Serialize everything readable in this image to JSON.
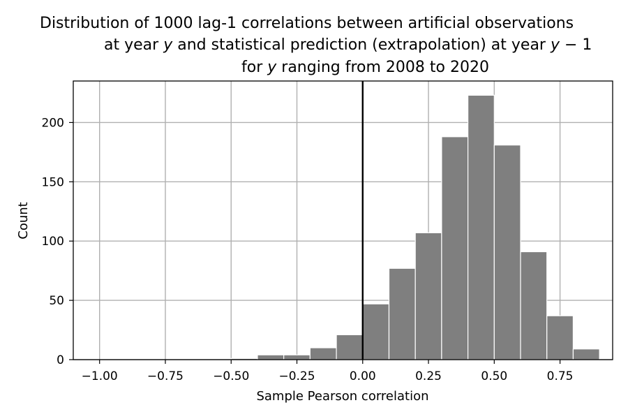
{
  "chart_data": {
    "type": "bar",
    "title": {
      "line1": "Distribution of 1000 lag-1 correlations between artificial observations",
      "line2_pre": "at year ",
      "line2_var": "y",
      "line2_post": " and statistical prediction (extrapolation) at year ",
      "line2_var2": "y",
      "line2_tail": " − 1",
      "line3_pre": "for ",
      "line3_var": "y",
      "line3_post": " ranging from 2008 to 2020"
    },
    "xlabel": "Sample Pearson correlation",
    "ylabel": "Count",
    "xlim": [
      -1.1,
      0.95
    ],
    "ylim": [
      0,
      235
    ],
    "xticks": [
      -1.0,
      -0.75,
      -0.5,
      -0.25,
      0.0,
      0.25,
      0.5,
      0.75
    ],
    "xtick_labels": [
      "−1.00",
      "−0.75",
      "−0.50",
      "−0.25",
      "0.00",
      "0.25",
      "0.50",
      "0.75"
    ],
    "yticks": [
      0,
      50,
      100,
      150,
      200
    ],
    "ytick_labels": [
      "0",
      "50",
      "100",
      "150",
      "200"
    ],
    "grid": true,
    "vline_x": 0.0,
    "bar_color": "#7f7f7f",
    "bar_edge_color": "#ffffff",
    "bins": [
      {
        "x0": -0.5,
        "x1": -0.4,
        "count": 1
      },
      {
        "x0": -0.4,
        "x1": -0.3,
        "count": 4
      },
      {
        "x0": -0.3,
        "x1": -0.2,
        "count": 4
      },
      {
        "x0": -0.2,
        "x1": -0.1,
        "count": 10
      },
      {
        "x0": -0.1,
        "x1": 0.0,
        "count": 21
      },
      {
        "x0": 0.0,
        "x1": 0.1,
        "count": 47
      },
      {
        "x0": 0.1,
        "x1": 0.2,
        "count": 77
      },
      {
        "x0": 0.2,
        "x1": 0.3,
        "count": 107
      },
      {
        "x0": 0.3,
        "x1": 0.4,
        "count": 188
      },
      {
        "x0": 0.4,
        "x1": 0.5,
        "count": 223
      },
      {
        "x0": 0.5,
        "x1": 0.6,
        "count": 181
      },
      {
        "x0": 0.6,
        "x1": 0.7,
        "count": 91
      },
      {
        "x0": 0.7,
        "x1": 0.8,
        "count": 37
      },
      {
        "x0": 0.8,
        "x1": 0.9,
        "count": 9
      }
    ]
  }
}
